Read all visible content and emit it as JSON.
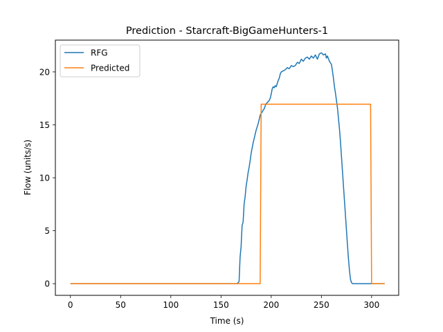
{
  "chart_data": {
    "type": "line",
    "title": "Prediction - Starcraft-BigGameHunters-1",
    "xlabel": "Time (s)",
    "ylabel": "Flow (units/s)",
    "xlim": [
      -15,
      327
    ],
    "ylim": [
      -1.1,
      23.0
    ],
    "xticks": [
      0,
      50,
      100,
      150,
      200,
      250,
      300
    ],
    "yticks": [
      0,
      5,
      10,
      15,
      20
    ],
    "grid": false,
    "legend_position": "top-left",
    "series": [
      {
        "name": "RFG",
        "color": "#1f77b4",
        "x": [
          0,
          50,
          100,
          150,
          166,
          168,
          169,
          170,
          171,
          172,
          173,
          174,
          175,
          176,
          177,
          178,
          179,
          180,
          181,
          182,
          183,
          184,
          185,
          186,
          187,
          188,
          189,
          190,
          191,
          192,
          193,
          194,
          195,
          196,
          197,
          198,
          199,
          200,
          201,
          202,
          203,
          204,
          205,
          206,
          207,
          208,
          209,
          210,
          212,
          214,
          216,
          218,
          220,
          222,
          224,
          226,
          228,
          230,
          232,
          234,
          236,
          238,
          240,
          242,
          244,
          246,
          248,
          250,
          252,
          254,
          255,
          256,
          258,
          260,
          261,
          262,
          263,
          264,
          265,
          266,
          267,
          268,
          269,
          270,
          271,
          272,
          273,
          274,
          275,
          276,
          277,
          278,
          279,
          280,
          281,
          282,
          283,
          285,
          290,
          295,
          300,
          305,
          310,
          313
        ],
        "y": [
          0,
          0,
          0,
          0,
          0,
          0.2,
          2.5,
          3.5,
          5.5,
          5.8,
          7.5,
          8.2,
          9.2,
          9.8,
          10.5,
          11.0,
          11.6,
          12.3,
          12.8,
          13.3,
          13.7,
          14.1,
          14.5,
          14.8,
          15.1,
          15.5,
          15.9,
          16.1,
          16.2,
          16.4,
          16.5,
          16.8,
          17.0,
          17.1,
          17.2,
          17.3,
          17.5,
          17.9,
          18.4,
          18.6,
          18.5,
          18.7,
          18.6,
          18.9,
          19.2,
          19.4,
          19.8,
          20.0,
          20.1,
          20.2,
          20.4,
          20.3,
          20.6,
          20.5,
          20.6,
          20.9,
          20.8,
          21.2,
          21.0,
          21.3,
          21.4,
          21.2,
          21.5,
          21.3,
          21.6,
          21.2,
          21.7,
          21.8,
          21.6,
          21.7,
          21.3,
          21.5,
          21.0,
          20.7,
          20.1,
          19.4,
          18.6,
          18.0,
          17.3,
          16.6,
          15.6,
          14.6,
          13.4,
          12.0,
          10.6,
          9.2,
          7.8,
          6.4,
          5.0,
          3.6,
          2.3,
          1.2,
          0.4,
          0.1,
          0,
          0,
          0,
          0,
          0,
          0,
          0,
          0,
          0,
          0
        ]
      },
      {
        "name": "Predicted",
        "color": "#ff7f0e",
        "x": [
          0,
          50,
          100,
          150,
          189,
          190,
          250,
          299,
          300,
          313
        ],
        "y": [
          0,
          0,
          0,
          0,
          0,
          16.95,
          16.95,
          16.95,
          0,
          0
        ]
      }
    ]
  }
}
